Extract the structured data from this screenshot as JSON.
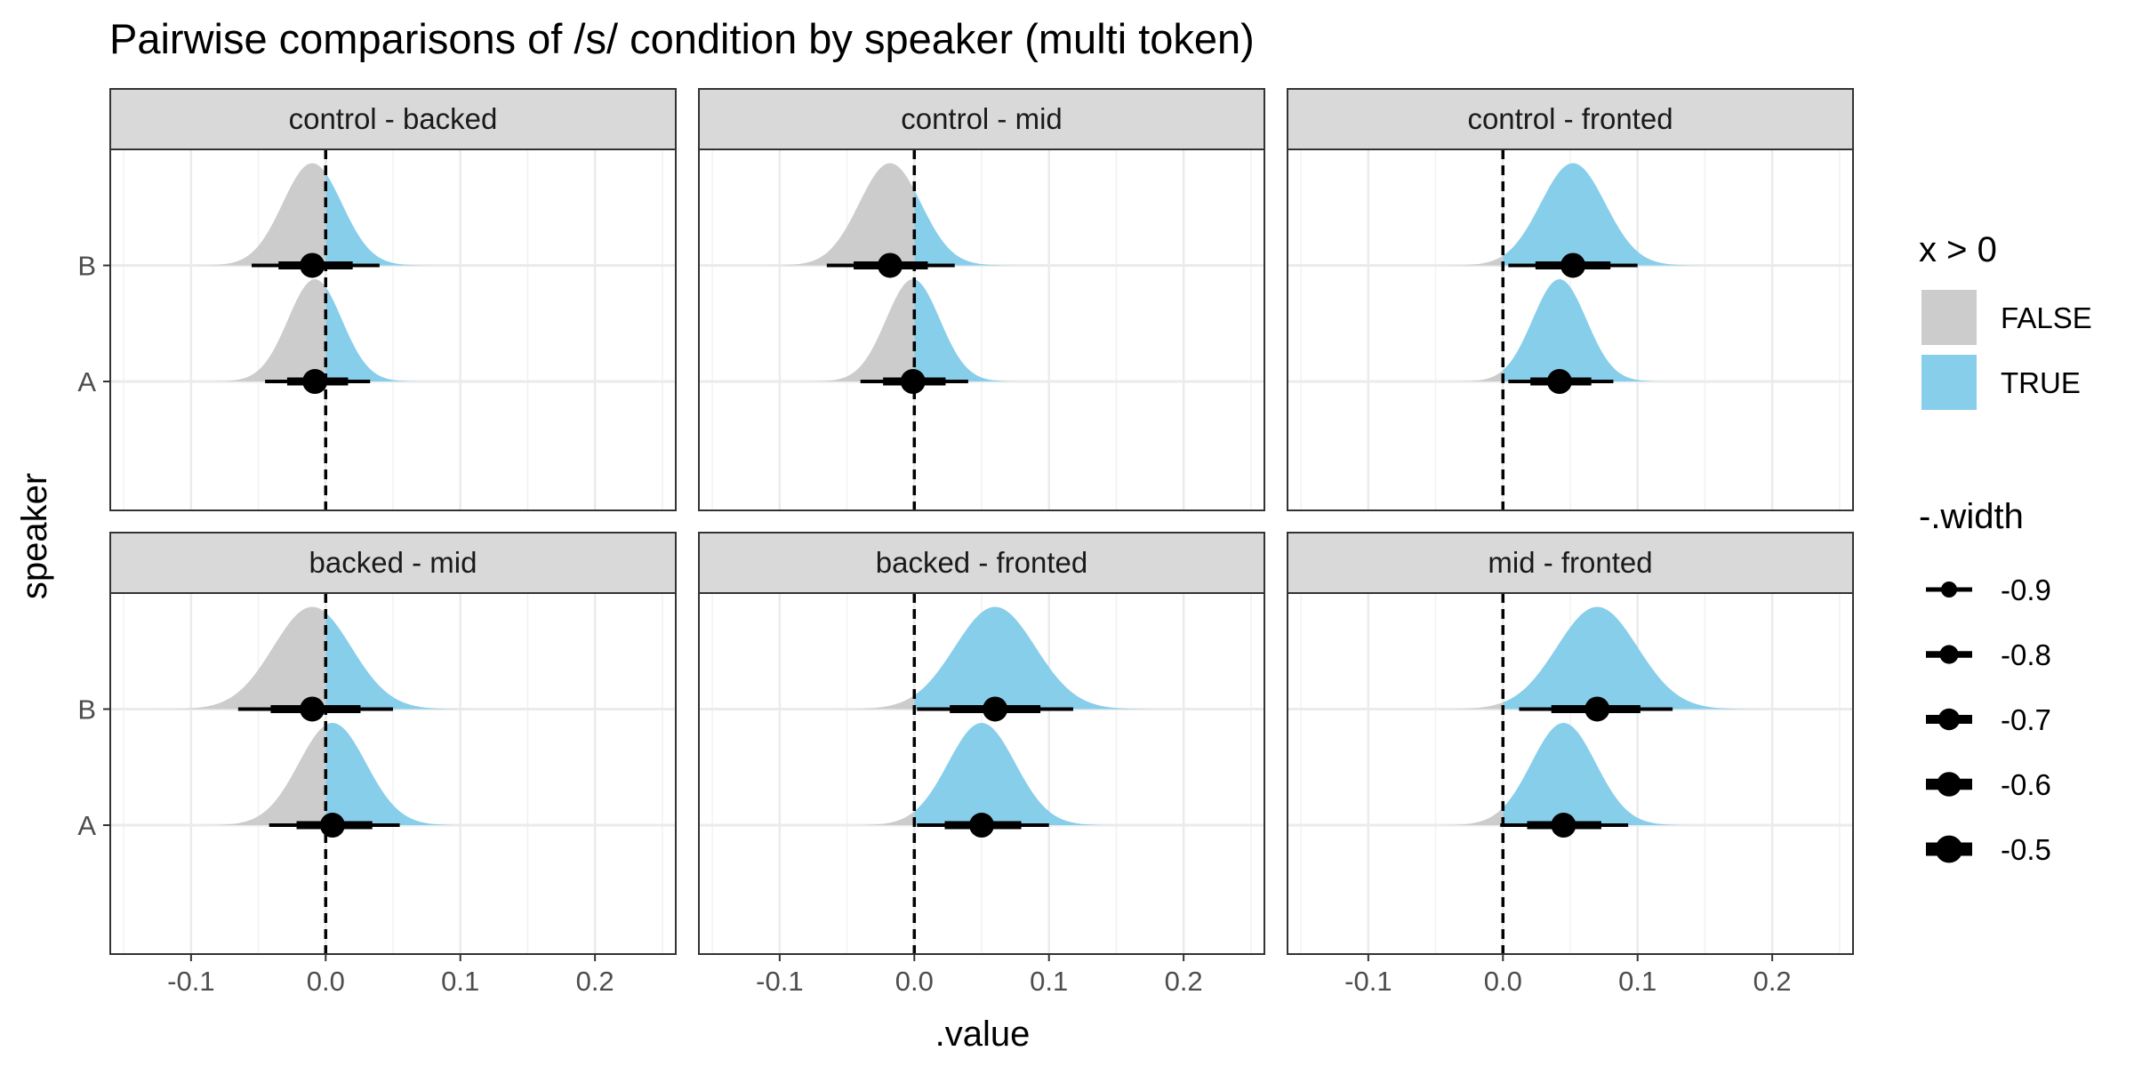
{
  "chart_data": {
    "type": "halfeye",
    "title": "Pairwise comparisons of /s/ condition by speaker (multi token)",
    "xlabel": ".value",
    "ylabel": "speaker",
    "xlim": [
      -0.16,
      0.26
    ],
    "x_ticks": [
      -0.1,
      0.0,
      0.1,
      0.2
    ],
    "x_tick_labels": [
      "-0.1",
      "0.0",
      "0.1",
      "0.2"
    ],
    "categories": [
      "A",
      "B"
    ],
    "reference_line": 0,
    "colors": {
      "false": "#cccccc",
      "true": "#87ceeb",
      "point": "#000000"
    },
    "panels": [
      {
        "label": "control - backed",
        "series": [
          {
            "speaker": "B",
            "median": -0.01,
            "sd": 0.022,
            "i90": [
              -0.055,
              0.04
            ]
          },
          {
            "speaker": "A",
            "median": -0.008,
            "sd": 0.02,
            "i90": [
              -0.045,
              0.033
            ]
          }
        ]
      },
      {
        "label": "control - mid",
        "series": [
          {
            "speaker": "B",
            "median": -0.018,
            "sd": 0.023,
            "i90": [
              -0.065,
              0.03
            ]
          },
          {
            "speaker": "A",
            "median": -0.001,
            "sd": 0.02,
            "i90": [
              -0.04,
              0.04
            ]
          }
        ]
      },
      {
        "label": "control - fronted",
        "series": [
          {
            "speaker": "B",
            "median": 0.052,
            "sd": 0.024,
            "i90": [
              0.004,
              0.1
            ]
          },
          {
            "speaker": "A",
            "median": 0.042,
            "sd": 0.02,
            "i90": [
              0.004,
              0.082
            ]
          }
        ]
      },
      {
        "label": "backed - mid",
        "series": [
          {
            "speaker": "B",
            "median": -0.01,
            "sd": 0.029,
            "i90": [
              -0.065,
              0.05
            ]
          },
          {
            "speaker": "A",
            "median": 0.005,
            "sd": 0.025,
            "i90": [
              -0.042,
              0.055
            ]
          }
        ]
      },
      {
        "label": "backed - fronted",
        "series": [
          {
            "speaker": "B",
            "median": 0.06,
            "sd": 0.03,
            "i90": [
              0.002,
              0.118
            ]
          },
          {
            "speaker": "A",
            "median": 0.05,
            "sd": 0.025,
            "i90": [
              0.002,
              0.1
            ]
          }
        ]
      },
      {
        "label": "mid - fronted",
        "series": [
          {
            "speaker": "B",
            "median": 0.07,
            "sd": 0.03,
            "i90": [
              0.012,
              0.126
            ]
          },
          {
            "speaker": "A",
            "median": 0.045,
            "sd": 0.024,
            "i90": [
              -0.002,
              0.093
            ]
          }
        ]
      }
    ],
    "legend": {
      "placement": "right",
      "fill_title": "x > 0",
      "fill_items": [
        {
          "label": "FALSE",
          "color": "#cccccc"
        },
        {
          "label": "TRUE",
          "color": "#87ceeb"
        }
      ],
      "width_title": "-.width",
      "width_items": [
        "-0.9",
        "-0.8",
        "-0.7",
        "-0.6",
        "-0.5"
      ]
    },
    "grid": true
  }
}
